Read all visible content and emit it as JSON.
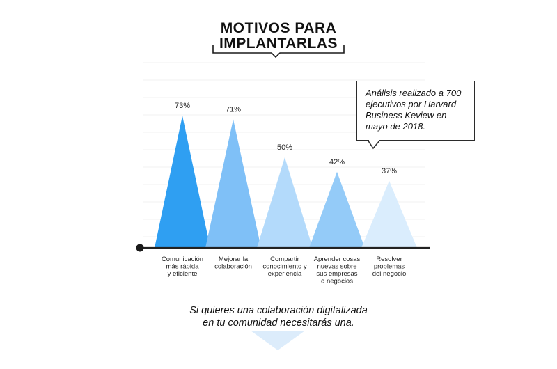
{
  "title_lines": [
    "MOTIVOS PARA",
    "IMPLANTARLAS"
  ],
  "note_text": "Análisis realizado a 700 ejecutivos por Harvard Business Keview en mayo de 2018.",
  "conclusion_lines": [
    "Si quieres una colaboración digitalizada",
    "en tu comunidad necesitarás una."
  ],
  "colors": {
    "bars": [
      "#2f9ff2",
      "#7fc0f7",
      "#b3dafb",
      "#94cbf8",
      "#daedfd"
    ],
    "axis": "#222222",
    "grid": "#f1f1f1",
    "arrow": "#dcecfb"
  },
  "chart_data": {
    "type": "bar",
    "categories": [
      [
        "Comunicación",
        "más rápida",
        "y eficiente"
      ],
      [
        "Mejorar la",
        "colaboración"
      ],
      [
        "Compartir",
        "conocimiento y",
        "experiencia"
      ],
      [
        "Aprender cosas",
        "nuevas sobre",
        "sus empresas",
        "o negocios"
      ],
      [
        "Resolver",
        "problemas",
        "del negocio"
      ]
    ],
    "values": [
      73,
      71,
      50,
      42,
      37
    ],
    "value_labels": [
      "73%",
      "71%",
      "50%",
      "42%",
      "37%"
    ],
    "ylim": [
      0,
      100
    ],
    "grid": true,
    "mark": "triangle"
  }
}
